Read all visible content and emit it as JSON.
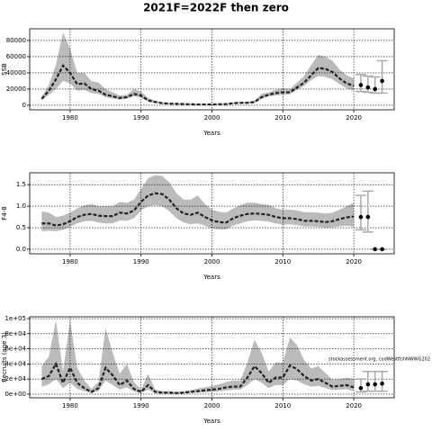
{
  "title": "2021F=2022F then zero",
  "chart_data": [
    {
      "type": "line",
      "ylabel": "SSB",
      "xlabel": "Years",
      "x": [
        1976,
        1977,
        1978,
        1979,
        1980,
        1981,
        1982,
        1983,
        1984,
        1985,
        1986,
        1987,
        1988,
        1989,
        1990,
        1991,
        1992,
        1993,
        1994,
        1995,
        1996,
        1997,
        1998,
        1999,
        2000,
        2001,
        2002,
        2003,
        2004,
        2005,
        2006,
        2007,
        2008,
        2009,
        2010,
        2011,
        2012,
        2013,
        2014,
        2015,
        2016,
        2017,
        2018,
        2019,
        2020
      ],
      "estimate": {
        "color": "#222222",
        "band_color": "#bbbbbb",
        "values": [
          8000,
          18000,
          32000,
          49000,
          40000,
          26000,
          27000,
          20000,
          18000,
          13000,
          11000,
          9000,
          10000,
          14000,
          12000,
          6000,
          4000,
          2500,
          2000,
          1800,
          1500,
          1200,
          1000,
          1000,
          1000,
          1200,
          1500,
          2500,
          3000,
          3000,
          4000,
          10000,
          13000,
          15000,
          16000,
          16000,
          22000,
          28000,
          37000,
          46000,
          45000,
          41000,
          33000,
          27000,
          24000
        ],
        "lower": [
          6000,
          13000,
          20000,
          30000,
          27000,
          18000,
          19000,
          15000,
          14000,
          10000,
          8500,
          7000,
          8000,
          11000,
          9500,
          4500,
          3000,
          2000,
          1500,
          1300,
          1100,
          900,
          700,
          700,
          700,
          900,
          1100,
          2000,
          2300,
          2300,
          3000,
          8000,
          11000,
          12000,
          13000,
          13500,
          19000,
          24000,
          31000,
          36000,
          35000,
          32000,
          26000,
          21000,
          18000
        ],
        "upper": [
          11000,
          25000,
          50000,
          90000,
          70000,
          40000,
          40000,
          30000,
          28000,
          20000,
          16000,
          12000,
          13000,
          20000,
          17000,
          9000,
          5500,
          3500,
          2800,
          2500,
          2100,
          1700,
          1500,
          1400,
          1500,
          1700,
          2100,
          3300,
          3800,
          4000,
          5500,
          14000,
          16000,
          19000,
          21000,
          20000,
          28000,
          36000,
          50000,
          62000,
          60000,
          55000,
          44000,
          37000,
          33000
        ]
      },
      "projection": {
        "color": "#000000",
        "bar_color": "#aaaaaa",
        "x": [
          2021,
          2022,
          2023,
          2024
        ],
        "values": [
          25000,
          22000,
          20000,
          30000
        ],
        "lower": [
          17000,
          16000,
          15000,
          15000
        ],
        "upper": [
          38000,
          36000,
          35000,
          55000
        ]
      },
      "xlim": [
        1974.3,
        2025.7
      ],
      "ylim": [
        -5600,
        94400
      ],
      "xticks": [
        1980,
        1990,
        2000,
        2010,
        2020
      ],
      "yticks": [
        0,
        20000,
        40000,
        60000,
        80000
      ],
      "grid": true
    },
    {
      "type": "line",
      "ylabel": "F4-8",
      "xlabel": "Years",
      "x": [
        1976,
        1977,
        1978,
        1979,
        1980,
        1981,
        1982,
        1983,
        1984,
        1985,
        1986,
        1987,
        1988,
        1989,
        1990,
        1991,
        1992,
        1993,
        1994,
        1995,
        1996,
        1997,
        1998,
        1999,
        2000,
        2001,
        2002,
        2003,
        2004,
        2005,
        2006,
        2007,
        2008,
        2009,
        2010,
        2011,
        2012,
        2013,
        2014,
        2015,
        2016,
        2017,
        2018,
        2019,
        2020
      ],
      "estimate": {
        "color": "#222222",
        "band_color": "#bbbbbb",
        "values": [
          0.6,
          0.6,
          0.55,
          0.58,
          0.65,
          0.75,
          0.8,
          0.82,
          0.78,
          0.77,
          0.77,
          0.85,
          0.83,
          0.9,
          1.1,
          1.25,
          1.3,
          1.28,
          1.15,
          0.95,
          0.83,
          0.8,
          0.85,
          0.75,
          0.67,
          0.63,
          0.62,
          0.72,
          0.78,
          0.82,
          0.83,
          0.82,
          0.8,
          0.75,
          0.72,
          0.72,
          0.7,
          0.66,
          0.66,
          0.65,
          0.63,
          0.65,
          0.7,
          0.74,
          0.76
        ],
        "lower": [
          0.42,
          0.43,
          0.42,
          0.45,
          0.52,
          0.6,
          0.65,
          0.66,
          0.62,
          0.6,
          0.6,
          0.67,
          0.66,
          0.72,
          0.9,
          1.0,
          1.02,
          1.0,
          0.88,
          0.72,
          0.62,
          0.58,
          0.6,
          0.55,
          0.48,
          0.46,
          0.46,
          0.55,
          0.6,
          0.65,
          0.67,
          0.66,
          0.64,
          0.6,
          0.57,
          0.58,
          0.56,
          0.53,
          0.53,
          0.52,
          0.5,
          0.51,
          0.53,
          0.55,
          0.52
        ],
        "upper": [
          0.88,
          0.85,
          0.75,
          0.78,
          0.85,
          0.95,
          1.02,
          1.05,
          1.0,
          1.0,
          1.0,
          1.1,
          1.08,
          1.15,
          1.4,
          1.65,
          1.72,
          1.7,
          1.55,
          1.3,
          1.15,
          1.15,
          1.25,
          1.05,
          0.92,
          0.87,
          0.85,
          0.95,
          1.02,
          1.08,
          1.08,
          1.05,
          1.03,
          0.95,
          0.92,
          0.92,
          0.9,
          0.86,
          0.86,
          0.85,
          0.83,
          0.85,
          0.92,
          1.0,
          1.08
        ]
      },
      "projection": {
        "color": "#000000",
        "bar_color": "#aaaaaa",
        "x": [
          2021,
          2022,
          2023,
          2024
        ],
        "values": [
          0.75,
          0.75,
          0,
          0
        ],
        "lower": [
          0.45,
          0.4,
          0,
          0
        ],
        "upper": [
          1.25,
          1.35,
          0,
          0
        ]
      },
      "xlim": [
        1974.3,
        2025.7
      ],
      "ylim": [
        -0.106,
        1.776
      ],
      "xticks": [
        1980,
        1990,
        2000,
        2010,
        2020
      ],
      "yticks": [
        {
          "value": 0,
          "label": "0.0"
        },
        0.5,
        {
          "value": 1,
          "label": "1.0"
        },
        1.5
      ],
      "grid": true
    },
    {
      "type": "line",
      "ylabel": "Recruits (age 3)",
      "xlabel": "Years",
      "annotation": "stockassessment.org, codWestfishNWWG202",
      "x": [
        1976,
        1977,
        1978,
        1979,
        1980,
        1981,
        1982,
        1983,
        1984,
        1985,
        1986,
        1987,
        1988,
        1989,
        1990,
        1991,
        1992,
        1993,
        1994,
        1995,
        1996,
        1997,
        1998,
        1999,
        2000,
        2001,
        2002,
        2003,
        2004,
        2005,
        2006,
        2007,
        2008,
        2009,
        2010,
        2011,
        2012,
        2013,
        2014,
        2015,
        2016,
        2017,
        2018,
        2019,
        2020
      ],
      "estimate": {
        "color": "#222222",
        "band_color": "#bbbbbb",
        "values": [
          20000,
          24000,
          40000,
          15000,
          35000,
          15000,
          8000,
          3000,
          8000,
          35000,
          25000,
          12000,
          18000,
          7000,
          3000,
          12000,
          3000,
          2000,
          2000,
          1500,
          2000,
          3000,
          4000,
          5000,
          6000,
          7000,
          9000,
          10000,
          10000,
          22000,
          37000,
          28000,
          15000,
          22000,
          22000,
          38000,
          33000,
          24000,
          18000,
          20000,
          15000,
          10000,
          11000,
          12000,
          9000
        ],
        "lower": [
          10000,
          13000,
          20000,
          8000,
          15000,
          7000,
          4000,
          1500,
          4000,
          18000,
          12000,
          6000,
          9000,
          3500,
          1500,
          6000,
          1500,
          1000,
          1000,
          800,
          1000,
          1500,
          2000,
          2500,
          3000,
          3500,
          5000,
          6000,
          6000,
          12000,
          20000,
          15000,
          8000,
          12000,
          12000,
          20000,
          18000,
          13000,
          10000,
          11000,
          8000,
          5500,
          6000,
          6500,
          4000
        ],
        "upper": [
          37000,
          50000,
          98000,
          30000,
          98000,
          35000,
          18000,
          7000,
          16000,
          88000,
          55000,
          27000,
          40000,
          16000,
          6000,
          27000,
          6000,
          4000,
          4000,
          3000,
          4000,
          5500,
          7500,
          9000,
          11000,
          13000,
          16000,
          18000,
          18000,
          42000,
          72000,
          55000,
          30000,
          42000,
          42000,
          75000,
          65000,
          45000,
          34000,
          37000,
          28000,
          19000,
          20000,
          22000,
          20000
        ]
      },
      "projection": {
        "color": "#000000",
        "bar_color": "#aaaaaa",
        "x": [
          2021,
          2022,
          2023,
          2024
        ],
        "values": [
          8000,
          13000,
          13000,
          14000
        ],
        "lower": [
          3000,
          4000,
          4000,
          4000
        ],
        "upper": [
          20000,
          30000,
          30000,
          30000
        ]
      },
      "xlim": [
        1974.3,
        2025.7
      ],
      "ylim": [
        -4800,
        102400
      ],
      "xticks": [
        1980,
        1990,
        2000,
        2010,
        2020
      ],
      "yticks": [
        {
          "value": 0,
          "label": "0e+00"
        },
        {
          "value": 20000,
          "label": "2e+04"
        },
        {
          "value": 40000,
          "label": "4e+04"
        },
        {
          "value": 60000,
          "label": "6e+04"
        },
        {
          "value": 80000,
          "label": "8e+04"
        },
        {
          "value": 100000,
          "label": "1e+05"
        }
      ],
      "grid": true
    }
  ]
}
